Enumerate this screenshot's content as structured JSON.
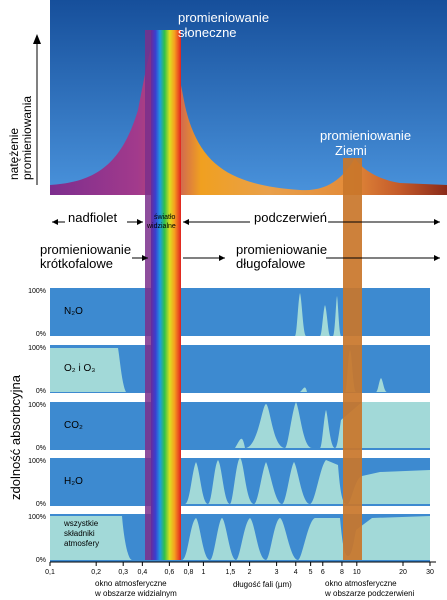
{
  "axis_y_top": "natężenie promieniowania",
  "axis_y_top_lines": [
    "natężenie",
    "promieniowania"
  ],
  "solar_label": [
    "promieniowanie",
    "słoneczne"
  ],
  "earth_label": [
    "promieniowanie",
    "Ziemi"
  ],
  "band_labels": {
    "uv": "nadfiolet",
    "visible": [
      "światło",
      "widzialne"
    ],
    "ir": "podczerwień",
    "shortwave": [
      "promieniowanie",
      "krótkofalowe"
    ],
    "longwave": [
      "promieniowanie",
      "długofalowe"
    ]
  },
  "absorption_axis": "zdolność absorbcyjna",
  "panels": [
    {
      "label": "N₂O",
      "top": "100%",
      "bottom": "0%"
    },
    {
      "label": "O₂ i O₃",
      "top": "100%",
      "bottom": "0%"
    },
    {
      "label": "CO₂",
      "top": "100%",
      "bottom": "0%"
    },
    {
      "label": "H₂O",
      "top": "100%",
      "bottom": "0%"
    },
    {
      "label": [
        "wszystkie",
        "składniki",
        "atmosfery"
      ],
      "top": "100%",
      "bottom": "0%"
    }
  ],
  "x_ticks": [
    "0,1",
    "0,2",
    "0,3",
    "0,4",
    "0,6",
    "0,8",
    "1",
    "1,5",
    "2",
    "3",
    "4",
    "5",
    "6",
    "8",
    "10",
    "20",
    "30"
  ],
  "x_tick_values": [
    0.1,
    0.2,
    0.3,
    0.4,
    0.6,
    0.8,
    1,
    1.5,
    2,
    3,
    4,
    5,
    6,
    8,
    10,
    20,
    30
  ],
  "x_label": "długość fali (µm)",
  "window_visible": [
    "okno atmosferyczne",
    "w obszarze widzialnym"
  ],
  "window_ir": [
    "okno atmosferyczne",
    "w obszarze podczerwieni"
  ],
  "colors": {
    "sky_top": "#1c5aa6",
    "sky_bottom": "#3f86d3",
    "panel": "#3d8ad0",
    "absorption": "#a8ddd8",
    "ir_window": "#c9762a",
    "uv_band": "#7a2f8c"
  }
}
